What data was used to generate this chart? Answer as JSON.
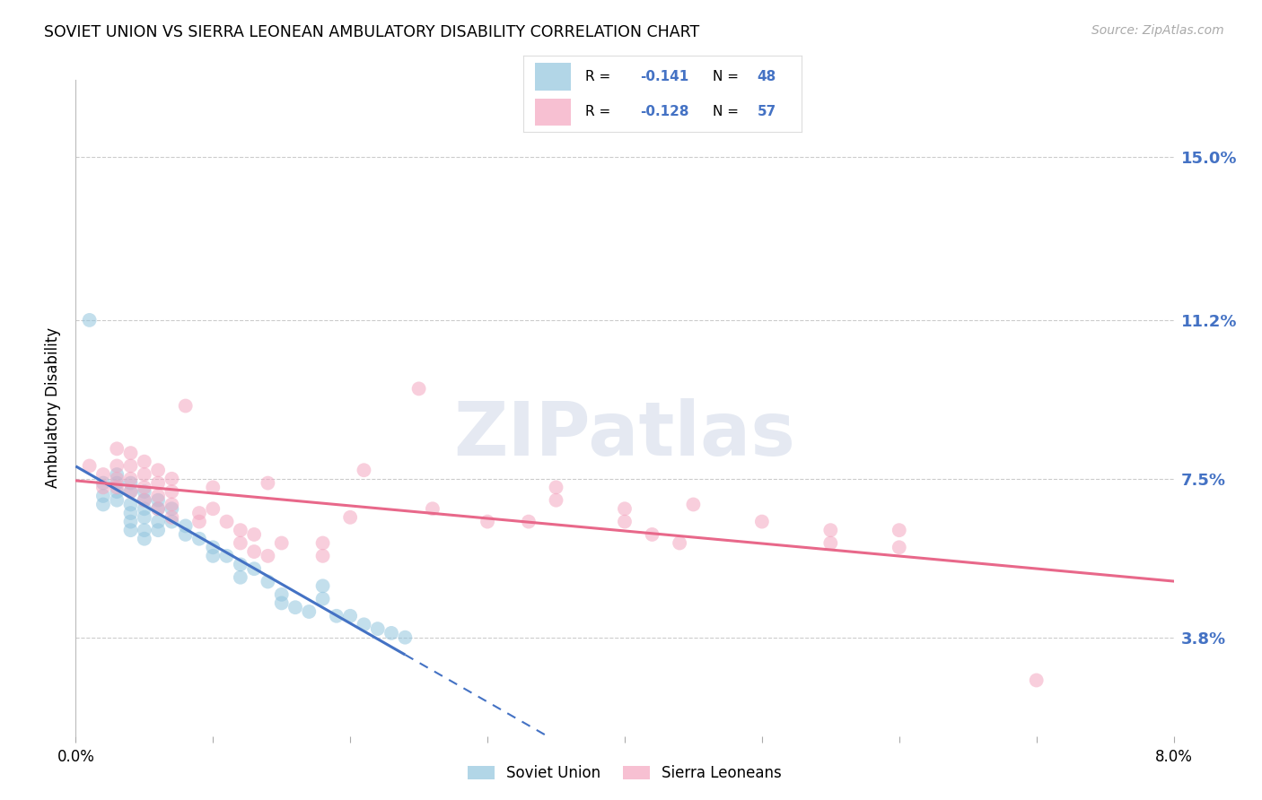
{
  "title": "SOVIET UNION VS SIERRA LEONEAN AMBULATORY DISABILITY CORRELATION CHART",
  "source": "Source: ZipAtlas.com",
  "ylabel": "Ambulatory Disability",
  "yticks": [
    "15.0%",
    "11.2%",
    "7.5%",
    "3.8%"
  ],
  "ytick_vals": [
    0.15,
    0.112,
    0.075,
    0.038
  ],
  "xlim": [
    0.0,
    0.08
  ],
  "ylim": [
    0.015,
    0.168
  ],
  "blue_R": "-0.141",
  "blue_N": "48",
  "pink_R": "-0.128",
  "pink_N": "57",
  "blue_color": "#92C5DE",
  "pink_color": "#F4A6C0",
  "blue_line_color": "#4472C4",
  "pink_line_color": "#E8688A",
  "legend_text_color": "#4472C4",
  "blue_scatter": [
    [
      0.001,
      0.112
    ],
    [
      0.002,
      0.074
    ],
    [
      0.002,
      0.071
    ],
    [
      0.002,
      0.069
    ],
    [
      0.003,
      0.076
    ],
    [
      0.003,
      0.074
    ],
    [
      0.003,
      0.072
    ],
    [
      0.003,
      0.07
    ],
    [
      0.004,
      0.074
    ],
    [
      0.004,
      0.072
    ],
    [
      0.004,
      0.069
    ],
    [
      0.004,
      0.067
    ],
    [
      0.004,
      0.065
    ],
    [
      0.004,
      0.063
    ],
    [
      0.005,
      0.072
    ],
    [
      0.005,
      0.07
    ],
    [
      0.005,
      0.068
    ],
    [
      0.005,
      0.066
    ],
    [
      0.005,
      0.063
    ],
    [
      0.005,
      0.061
    ],
    [
      0.006,
      0.07
    ],
    [
      0.006,
      0.068
    ],
    [
      0.006,
      0.065
    ],
    [
      0.006,
      0.063
    ],
    [
      0.007,
      0.068
    ],
    [
      0.007,
      0.065
    ],
    [
      0.008,
      0.064
    ],
    [
      0.008,
      0.062
    ],
    [
      0.009,
      0.061
    ],
    [
      0.01,
      0.059
    ],
    [
      0.01,
      0.057
    ],
    [
      0.011,
      0.057
    ],
    [
      0.012,
      0.055
    ],
    [
      0.012,
      0.052
    ],
    [
      0.013,
      0.054
    ],
    [
      0.014,
      0.051
    ],
    [
      0.015,
      0.048
    ],
    [
      0.015,
      0.046
    ],
    [
      0.016,
      0.045
    ],
    [
      0.017,
      0.044
    ],
    [
      0.018,
      0.05
    ],
    [
      0.018,
      0.047
    ],
    [
      0.019,
      0.043
    ],
    [
      0.02,
      0.043
    ],
    [
      0.021,
      0.041
    ],
    [
      0.022,
      0.04
    ],
    [
      0.023,
      0.039
    ],
    [
      0.024,
      0.038
    ]
  ],
  "pink_scatter": [
    [
      0.001,
      0.078
    ],
    [
      0.002,
      0.076
    ],
    [
      0.002,
      0.073
    ],
    [
      0.003,
      0.082
    ],
    [
      0.003,
      0.078
    ],
    [
      0.003,
      0.075
    ],
    [
      0.003,
      0.073
    ],
    [
      0.004,
      0.081
    ],
    [
      0.004,
      0.078
    ],
    [
      0.004,
      0.075
    ],
    [
      0.004,
      0.072
    ],
    [
      0.005,
      0.079
    ],
    [
      0.005,
      0.076
    ],
    [
      0.005,
      0.073
    ],
    [
      0.005,
      0.07
    ],
    [
      0.006,
      0.077
    ],
    [
      0.006,
      0.074
    ],
    [
      0.006,
      0.071
    ],
    [
      0.006,
      0.068
    ],
    [
      0.007,
      0.075
    ],
    [
      0.007,
      0.072
    ],
    [
      0.007,
      0.069
    ],
    [
      0.007,
      0.066
    ],
    [
      0.008,
      0.092
    ],
    [
      0.009,
      0.067
    ],
    [
      0.009,
      0.065
    ],
    [
      0.01,
      0.073
    ],
    [
      0.01,
      0.068
    ],
    [
      0.011,
      0.065
    ],
    [
      0.012,
      0.063
    ],
    [
      0.012,
      0.06
    ],
    [
      0.013,
      0.062
    ],
    [
      0.013,
      0.058
    ],
    [
      0.014,
      0.074
    ],
    [
      0.014,
      0.057
    ],
    [
      0.015,
      0.06
    ],
    [
      0.018,
      0.06
    ],
    [
      0.018,
      0.057
    ],
    [
      0.02,
      0.066
    ],
    [
      0.021,
      0.077
    ],
    [
      0.025,
      0.096
    ],
    [
      0.026,
      0.068
    ],
    [
      0.03,
      0.065
    ],
    [
      0.033,
      0.065
    ],
    [
      0.035,
      0.073
    ],
    [
      0.035,
      0.07
    ],
    [
      0.04,
      0.068
    ],
    [
      0.04,
      0.065
    ],
    [
      0.042,
      0.062
    ],
    [
      0.044,
      0.06
    ],
    [
      0.045,
      0.069
    ],
    [
      0.05,
      0.065
    ],
    [
      0.055,
      0.063
    ],
    [
      0.055,
      0.06
    ],
    [
      0.06,
      0.063
    ],
    [
      0.06,
      0.059
    ],
    [
      0.07,
      0.028
    ]
  ],
  "watermark_text": "ZIPatlas",
  "background_color": "#ffffff",
  "grid_color": "#cccccc",
  "blue_line_start_x": 0.0,
  "blue_line_end_solid_x": 0.024,
  "pink_line_start_x": 0.0,
  "pink_line_end_x": 0.08
}
